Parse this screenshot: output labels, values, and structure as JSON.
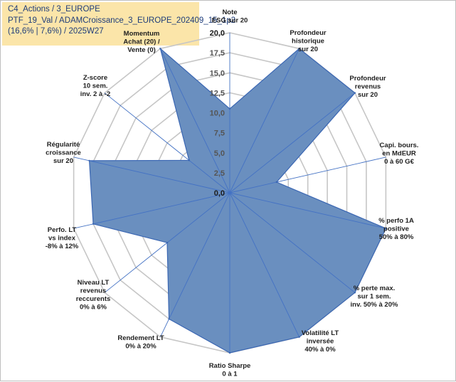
{
  "header": {
    "lines": [
      "C4_Actions / 3_EUROPE",
      "PTF_19_Val / ADAMCroissance_3_EUROPE_202409_15_1p2",
      "(16,6% | 7,6%) / 2025W27"
    ]
  },
  "chart_data": {
    "type": "radar",
    "rmin": 0,
    "rmax": 20,
    "tick_labels": [
      "0,0",
      "2,5",
      "5,0",
      "7,5",
      "10,0",
      "12,5",
      "15,0",
      "17,5",
      "20,0"
    ],
    "grid": true,
    "axes": [
      {
        "label": [
          "Note",
          "ESG sur 20"
        ],
        "value": 10.5
      },
      {
        "label": [
          "Profondeur",
          "historique",
          "sur 20"
        ],
        "value": 20
      },
      {
        "label": [
          "Profondeur",
          "revenus",
          "sur 20"
        ],
        "value": 20
      },
      {
        "label": [
          "Capi. bours.",
          "en MdEUR",
          "0 à 60 G€"
        ],
        "value": 6
      },
      {
        "label": [
          "% perfo 1A",
          "positive",
          "50% à 80%"
        ],
        "value": 20
      },
      {
        "label": [
          "% perte max.",
          "sur 1 sem.",
          "inv. 50% à 20%"
        ],
        "value": 20
      },
      {
        "label": [
          "Volatilité LT",
          "inversée",
          "40% à 0%"
        ],
        "value": 20
      },
      {
        "label": [
          "Ratio Sharpe",
          "0 à 1"
        ],
        "value": 20
      },
      {
        "label": [
          "Rendement LT",
          "0% à 20%"
        ],
        "value": 17.5
      },
      {
        "label": [
          "Niveau LT",
          "revenus",
          "reccurents",
          "0% à 6%"
        ],
        "value": 10
      },
      {
        "label": [
          "Perfo. LT",
          "vs index",
          "-8% à 12%"
        ],
        "value": 17.5
      },
      {
        "label": [
          "Régularité",
          "croissance",
          "sur 20"
        ],
        "value": 18
      },
      {
        "label": [
          "Z-score",
          "10 sem.",
          "inv. 2 à -2"
        ],
        "value": 6.5
      },
      {
        "label": [
          "Momentum",
          "Achat (20) /",
          "Vente (0)"
        ],
        "value": 20
      }
    ],
    "colors": {
      "fill": "#6a8fbf",
      "stroke": "#3b67b3",
      "grid": "#c6c6c6",
      "spoke": "#4472c4"
    }
  }
}
